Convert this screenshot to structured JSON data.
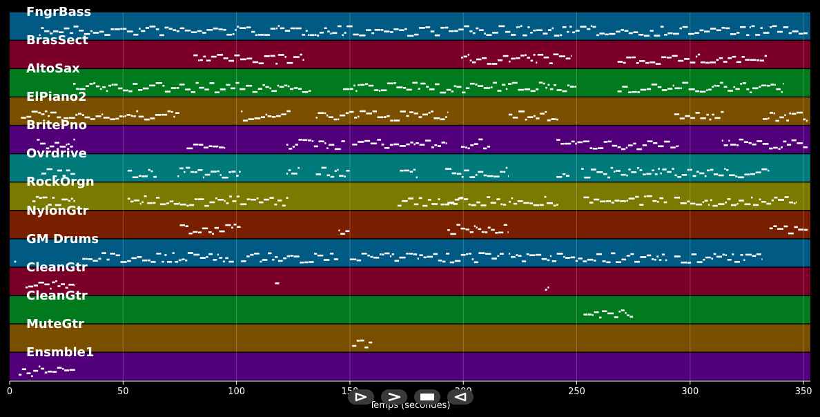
{
  "chart_data": {
    "type": "piano-roll",
    "title": "",
    "xlabel": "Temps (secondes)",
    "xlim": [
      0,
      353
    ],
    "xticks": [
      0,
      50,
      100,
      150,
      200,
      250,
      300,
      350
    ],
    "grid": true,
    "tracks": [
      {
        "name": "FngrBass",
        "color": "#005a84",
        "segments": [
          [
            13,
            352
          ]
        ]
      },
      {
        "name": "BrasSect",
        "color": "#7a0028",
        "segments": [
          [
            81,
            130
          ],
          [
            199,
            248
          ],
          [
            268,
            334
          ]
        ]
      },
      {
        "name": "AltoSax",
        "color": "#007a1c",
        "segments": [
          [
            28,
            133
          ],
          [
            147,
            250
          ],
          [
            268,
            341
          ]
        ]
      },
      {
        "name": "ElPiano2",
        "color": "#7a5000",
        "segments": [
          [
            5,
            75
          ],
          [
            102,
            124
          ],
          [
            135,
            193
          ],
          [
            220,
            242
          ],
          [
            293,
            315
          ],
          [
            332,
            352
          ]
        ]
      },
      {
        "name": "BritePno",
        "color": "#52007a",
        "segments": [
          [
            12,
            29
          ],
          [
            78,
            95
          ],
          [
            122,
            148
          ],
          [
            151,
            193
          ],
          [
            199,
            212
          ],
          [
            241,
            295
          ],
          [
            314,
            352
          ]
        ]
      },
      {
        "name": "Ovrdrive",
        "color": "#007a7a",
        "segments": [
          [
            14,
            29
          ],
          [
            52,
            65
          ],
          [
            74,
            102
          ],
          [
            122,
            128
          ],
          [
            135,
            150
          ],
          [
            172,
            180
          ],
          [
            192,
            220
          ],
          [
            241,
            247
          ],
          [
            252,
            335
          ]
        ]
      },
      {
        "name": "RockOrgn",
        "color": "#7a7a00",
        "segments": [
          [
            10,
            29
          ],
          [
            52,
            75
          ],
          [
            75,
            102
          ],
          [
            102,
            123
          ],
          [
            171,
            200
          ],
          [
            193,
            219
          ],
          [
            220,
            242
          ],
          [
            253,
            290
          ],
          [
            293,
            318
          ],
          [
            318,
            347
          ]
        ]
      },
      {
        "name": "NylonGtr",
        "color": "#7a1e00",
        "segments": [
          [
            75,
            102
          ],
          [
            145,
            150
          ],
          [
            193,
            220
          ],
          [
            335,
            352
          ]
        ]
      },
      {
        "name": "GM Drums",
        "color": "#005a84",
        "segments": [
          [
            2,
            3
          ],
          [
            32,
            99
          ],
          [
            102,
            145
          ],
          [
            150,
            218
          ],
          [
            220,
            290
          ],
          [
            293,
            332
          ]
        ]
      },
      {
        "name": "CleanGtr",
        "color": "#7a0028",
        "segments": [
          [
            7,
            29
          ],
          [
            117,
            119
          ],
          [
            236,
            238
          ]
        ]
      },
      {
        "name": "CleanGtr",
        "color": "#007a1c",
        "segments": [
          [
            253,
            275
          ]
        ]
      },
      {
        "name": "MuteGtr",
        "color": "#7a5000",
        "segments": [
          [
            151,
            160
          ]
        ]
      },
      {
        "name": "Ensmble1",
        "color": "#52007a",
        "segments": [
          [
            4,
            29
          ]
        ]
      }
    ]
  },
  "controls": {
    "play_icon": "play-icon",
    "forward_icon": "forward-icon",
    "stop_icon": "stop-icon",
    "rewind_icon": "rewind-icon"
  }
}
